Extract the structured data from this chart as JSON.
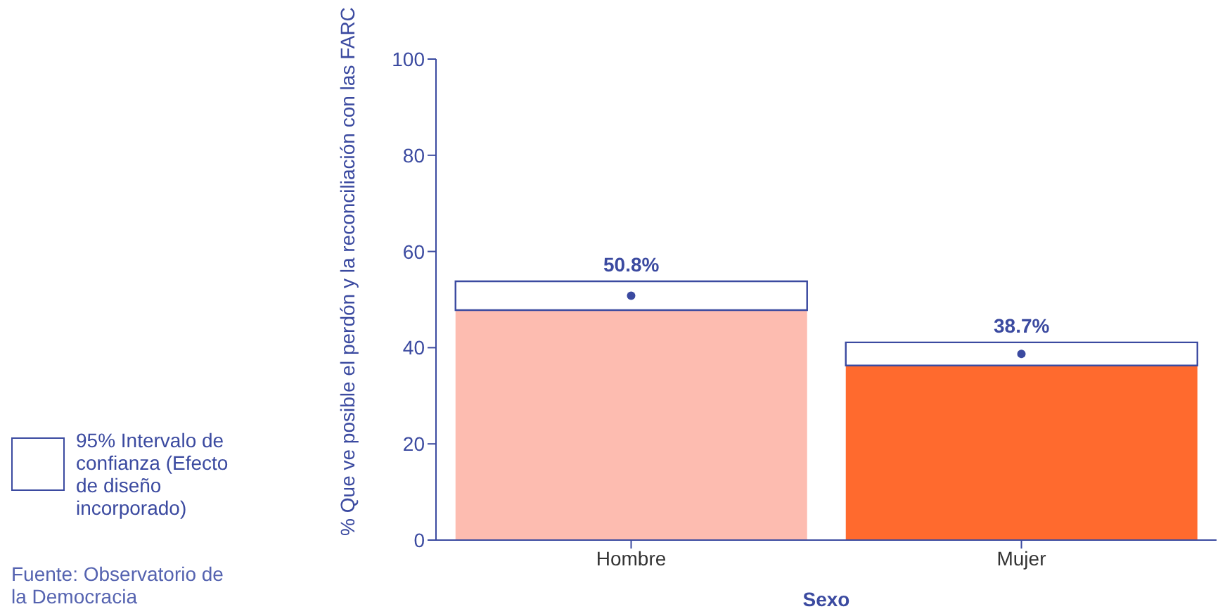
{
  "chart_data": {
    "type": "bar",
    "stacked": true,
    "ylabel": "% Que ve posible el perdón y la reconciliación con las FARC",
    "xlabel": "Sexo",
    "categories": [
      "Hombre",
      "Mujer"
    ],
    "series": [
      {
        "colors": [
          "#fdbcb0",
          "#ff6a2e"
        ],
        "values": [
          47.8,
          36.3
        ]
      },
      {
        "name": "95% Intervalo de confianza (Efecto de diseño incorporado)",
        "color": "#ffffff",
        "values": [
          6.0,
          4.8
        ]
      },
      {
        "type": "scatter",
        "color": "#3b4aa0",
        "x": [
          "Hombre",
          "Mujer"
        ],
        "values": [
          50.8,
          38.7
        ],
        "value_labels": [
          "50.8%",
          "38.7%"
        ]
      }
    ],
    "marker": "circle",
    "ylim": [
      0,
      100
    ],
    "yticks": [
      0,
      20,
      40,
      60,
      80,
      100
    ],
    "grid": false,
    "legend": "left",
    "annotations": [
      "Fuente: Observatorio de la Democracia"
    ]
  }
}
